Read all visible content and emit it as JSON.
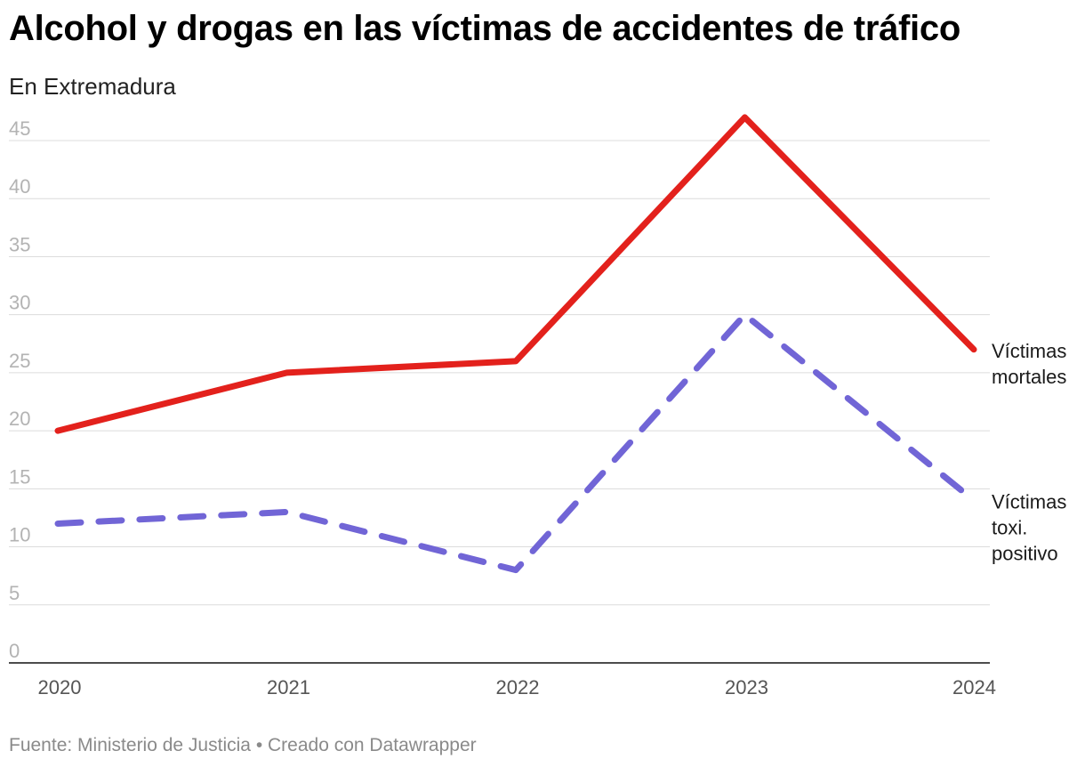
{
  "title": "Alcohol y drogas en las víctimas de accidentes de tráfico",
  "subtitle": "En Extremadura",
  "footer": {
    "source": "Fuente: Ministerio de Justicia",
    "separator": "•",
    "credit": "Creado con Datawrapper"
  },
  "chart_data": {
    "type": "line",
    "x": [
      "2020",
      "2021",
      "2022",
      "2023",
      "2024"
    ],
    "ylim": [
      0,
      47
    ],
    "yticks": [
      0,
      5,
      10,
      15,
      20,
      25,
      30,
      35,
      40,
      45
    ],
    "grid": true,
    "series": [
      {
        "name": "Víctimas mortales",
        "label_lines": [
          "Víctimas",
          "mortales"
        ],
        "values": [
          20,
          25,
          26,
          47,
          27
        ],
        "color": "#e3211c",
        "style": "solid"
      },
      {
        "name": "Víctimas toxi. positivo",
        "label_lines": [
          "Víctimas",
          "toxi.",
          "positivo"
        ],
        "values": [
          12,
          13,
          8,
          30,
          14
        ],
        "color": "#7165d6",
        "style": "dashed"
      }
    ]
  }
}
